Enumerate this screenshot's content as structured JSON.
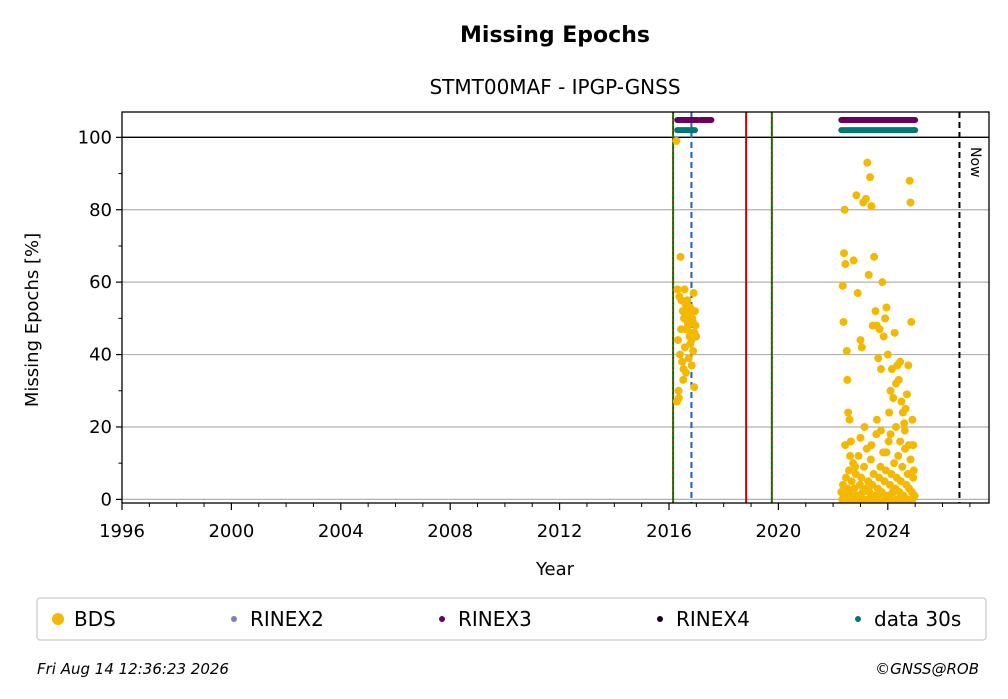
{
  "chart_data": {
    "type": "scatter",
    "title": "Missing Epochs",
    "subtitle": "STMT00MAF - IPGP-GNSS",
    "xlabel": "Year",
    "ylabel": "Missing Epochs [%]",
    "xlim": [
      1996,
      2027.7
    ],
    "ylim": [
      -1,
      107
    ],
    "x_ticks": [
      "1996",
      "2000",
      "2004",
      "2008",
      "2012",
      "2016",
      "2020",
      "2024"
    ],
    "y_ticks": [
      "0",
      "20",
      "40",
      "60",
      "80",
      "100"
    ],
    "grid": "horizontal",
    "now_label": "Now",
    "now_year": 2026.62,
    "reference_line_y": 100,
    "vertical_lines": [
      {
        "x": 2016.15,
        "color": "#008000",
        "style": "solid"
      },
      {
        "x": 2016.15,
        "color": "#cc0000",
        "style": "dotted"
      },
      {
        "x": 2016.82,
        "color": "#1f5fbf",
        "style": "dashed"
      },
      {
        "x": 2018.82,
        "color": "#cc0000",
        "style": "solid"
      },
      {
        "x": 2019.76,
        "color": "#008000",
        "style": "solid"
      },
      {
        "x": 2019.76,
        "color": "#cc0000",
        "style": "dotted"
      }
    ],
    "availability_bars": [
      {
        "series": "RINEX3",
        "y": 104.8,
        "color": "#6a0060",
        "ranges": [
          [
            2016.3,
            2017.05
          ],
          [
            2017.15,
            2017.55
          ],
          [
            2022.3,
            2025.0
          ]
        ]
      },
      {
        "series": "data 30s",
        "y": 102,
        "color": "#007878",
        "ranges": [
          [
            2016.3,
            2016.95
          ],
          [
            2022.3,
            2025.0
          ]
        ]
      }
    ],
    "series": [
      {
        "name": "BDS",
        "color": "#f5b800",
        "points": [
          [
            2016.27,
            99
          ],
          [
            2016.42,
            67
          ],
          [
            2016.31,
            58
          ],
          [
            2016.38,
            56
          ],
          [
            2016.45,
            55
          ],
          [
            2016.5,
            52
          ],
          [
            2016.55,
            50
          ],
          [
            2016.6,
            54
          ],
          [
            2016.65,
            53
          ],
          [
            2016.7,
            48
          ],
          [
            2016.75,
            45
          ],
          [
            2016.8,
            46
          ],
          [
            2016.85,
            50
          ],
          [
            2016.9,
            57
          ],
          [
            2016.95,
            52
          ],
          [
            2016.33,
            44
          ],
          [
            2016.4,
            40
          ],
          [
            2016.48,
            38
          ],
          [
            2016.53,
            36
          ],
          [
            2016.58,
            42
          ],
          [
            2016.63,
            47
          ],
          [
            2016.68,
            49
          ],
          [
            2016.73,
            51
          ],
          [
            2016.78,
            43
          ],
          [
            2016.83,
            37
          ],
          [
            2016.88,
            41
          ],
          [
            2016.93,
            46
          ],
          [
            2016.35,
            30
          ],
          [
            2016.29,
            27
          ],
          [
            2016.36,
            28
          ],
          [
            2016.52,
            33
          ],
          [
            2016.62,
            35
          ],
          [
            2016.72,
            39
          ],
          [
            2016.82,
            44
          ],
          [
            2016.92,
            31
          ],
          [
            2016.97,
            48
          ],
          [
            2016.44,
            47
          ],
          [
            2016.57,
            58
          ],
          [
            2016.67,
            55
          ],
          [
            2016.77,
            53
          ],
          [
            2016.87,
            49
          ],
          [
            2016.99,
            45
          ],
          [
            2022.35,
            59
          ],
          [
            2022.38,
            49
          ],
          [
            2022.4,
            68
          ],
          [
            2022.42,
            80
          ],
          [
            2022.45,
            65
          ],
          [
            2022.5,
            41
          ],
          [
            2022.52,
            33
          ],
          [
            2022.55,
            24
          ],
          [
            2022.6,
            22
          ],
          [
            2022.65,
            16
          ],
          [
            2022.75,
            66
          ],
          [
            2022.85,
            84
          ],
          [
            2022.9,
            57
          ],
          [
            2023.0,
            44
          ],
          [
            2023.05,
            42
          ],
          [
            2023.1,
            82
          ],
          [
            2023.2,
            83
          ],
          [
            2023.25,
            93
          ],
          [
            2023.3,
            62
          ],
          [
            2023.35,
            89
          ],
          [
            2023.4,
            81
          ],
          [
            2023.45,
            48
          ],
          [
            2023.5,
            67
          ],
          [
            2023.55,
            52
          ],
          [
            2023.6,
            48
          ],
          [
            2023.65,
            39
          ],
          [
            2023.7,
            47
          ],
          [
            2023.75,
            36
          ],
          [
            2023.8,
            60
          ],
          [
            2023.85,
            45
          ],
          [
            2023.9,
            50
          ],
          [
            2023.95,
            53
          ],
          [
            2024.0,
            40
          ],
          [
            2024.05,
            24
          ],
          [
            2024.1,
            30
          ],
          [
            2024.15,
            36
          ],
          [
            2024.2,
            28
          ],
          [
            2024.25,
            46
          ],
          [
            2024.3,
            32
          ],
          [
            2024.35,
            37
          ],
          [
            2024.4,
            33
          ],
          [
            2024.45,
            38
          ],
          [
            2024.5,
            27
          ],
          [
            2024.55,
            24
          ],
          [
            2024.6,
            21
          ],
          [
            2024.65,
            25
          ],
          [
            2024.7,
            29
          ],
          [
            2024.75,
            37
          ],
          [
            2024.8,
            88
          ],
          [
            2024.83,
            82
          ],
          [
            2024.86,
            49
          ],
          [
            2024.9,
            22
          ],
          [
            2024.93,
            15
          ],
          [
            2022.3,
            2
          ],
          [
            2022.36,
            4
          ],
          [
            2022.41,
            1
          ],
          [
            2022.47,
            6
          ],
          [
            2022.53,
            3
          ],
          [
            2022.58,
            8
          ],
          [
            2022.63,
            2
          ],
          [
            2022.68,
            5
          ],
          [
            2022.73,
            10
          ],
          [
            2022.78,
            3
          ],
          [
            2022.83,
            7
          ],
          [
            2022.88,
            1
          ],
          [
            2022.93,
            12
          ],
          [
            2022.98,
            4
          ],
          [
            2023.03,
            6
          ],
          [
            2023.08,
            2
          ],
          [
            2023.13,
            9
          ],
          [
            2023.18,
            3
          ],
          [
            2023.23,
            14
          ],
          [
            2023.28,
            5
          ],
          [
            2023.33,
            2
          ],
          [
            2023.38,
            11
          ],
          [
            2023.43,
            4
          ],
          [
            2023.48,
            7
          ],
          [
            2023.53,
            1
          ],
          [
            2023.58,
            18
          ],
          [
            2023.63,
            3
          ],
          [
            2023.68,
            6
          ],
          [
            2023.73,
            9
          ],
          [
            2023.78,
            2
          ],
          [
            2023.83,
            13
          ],
          [
            2023.88,
            5
          ],
          [
            2023.93,
            8
          ],
          [
            2023.98,
            1
          ],
          [
            2024.03,
            16
          ],
          [
            2024.08,
            4
          ],
          [
            2024.13,
            7
          ],
          [
            2024.18,
            2
          ],
          [
            2024.23,
            10
          ],
          [
            2024.28,
            3
          ],
          [
            2024.33,
            6
          ],
          [
            2024.38,
            12
          ],
          [
            2024.43,
            2
          ],
          [
            2024.48,
            5
          ],
          [
            2024.53,
            9
          ],
          [
            2024.58,
            1
          ],
          [
            2024.63,
            14
          ],
          [
            2024.68,
            4
          ],
          [
            2024.73,
            7
          ],
          [
            2024.78,
            3
          ],
          [
            2024.83,
            11
          ],
          [
            2024.88,
            2
          ],
          [
            2024.93,
            6
          ],
          [
            2024.98,
            1
          ],
          [
            2022.44,
            15
          ],
          [
            2022.62,
            12
          ],
          [
            2022.8,
            9
          ],
          [
            2023.0,
            17
          ],
          [
            2023.15,
            20
          ],
          [
            2023.4,
            15
          ],
          [
            2023.6,
            22
          ],
          [
            2023.75,
            19
          ],
          [
            2023.95,
            13
          ],
          [
            2024.1,
            18
          ],
          [
            2024.3,
            20
          ],
          [
            2024.45,
            16
          ],
          [
            2024.62,
            19
          ],
          [
            2024.77,
            15
          ],
          [
            2024.95,
            8
          ],
          [
            2022.34,
            0
          ],
          [
            2022.5,
            0
          ],
          [
            2022.7,
            0
          ],
          [
            2022.9,
            0
          ],
          [
            2023.1,
            0
          ],
          [
            2023.3,
            0
          ],
          [
            2023.5,
            0
          ],
          [
            2023.7,
            0
          ],
          [
            2023.9,
            0
          ],
          [
            2024.1,
            0
          ],
          [
            2024.3,
            0
          ],
          [
            2024.5,
            0
          ],
          [
            2024.7,
            0
          ],
          [
            2024.9,
            0
          ]
        ]
      }
    ],
    "legend": [
      {
        "label": "BDS",
        "color": "#f5b800",
        "size": "large"
      },
      {
        "label": "RINEX2",
        "color": "#7f7fbf",
        "size": "small"
      },
      {
        "label": "RINEX3",
        "color": "#6a0060",
        "size": "small"
      },
      {
        "label": "RINEX4",
        "color": "#1a0020",
        "size": "small"
      },
      {
        "label": "data 30s",
        "color": "#007878",
        "size": "small"
      }
    ]
  },
  "footer": {
    "timestamp": "Fri Aug 14 12:36:23 2026",
    "copyright": "©GNSS@ROB"
  }
}
